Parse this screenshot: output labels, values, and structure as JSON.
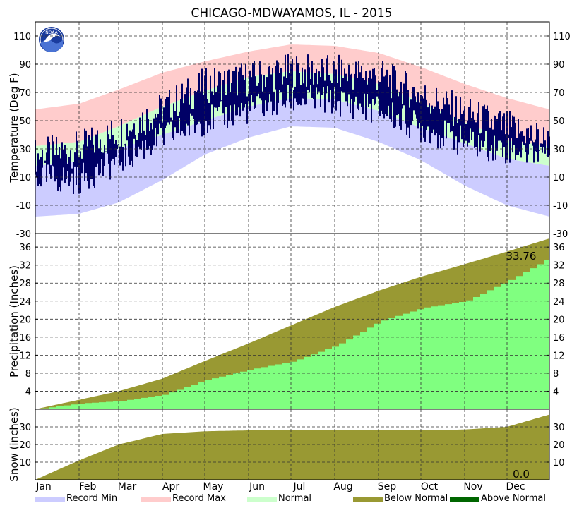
{
  "chart_data": {
    "type": "area",
    "title": "CHICAGO-MDWAYAMOS, IL - 2015",
    "months": [
      "Jan",
      "Feb",
      "Mar",
      "Apr",
      "May",
      "Jun",
      "Jul",
      "Aug",
      "Sep",
      "Oct",
      "Nov",
      "Dec"
    ],
    "colors": {
      "record_min": "#ccccff",
      "record_max": "#ffcccc",
      "normal": "#ccffcc",
      "observed": "#000066",
      "precip_normal": "#999933",
      "precip_actual": "#80ff80",
      "above_normal": "#006600",
      "grid": "#555555"
    },
    "legend": [
      {
        "label": "Record Min",
        "color": "#ccccff"
      },
      {
        "label": "Record Max",
        "color": "#ffcccc"
      },
      {
        "label": "Normal",
        "color": "#ccffcc"
      },
      {
        "label": "Below Normal",
        "color": "#999933"
      },
      {
        "label": "Above Normal",
        "color": "#006600"
      }
    ],
    "panels": [
      {
        "id": "temperature",
        "ylabel": "Temperature (Deg F)",
        "ylim": [
          -30,
          120
        ],
        "ticks": [
          -30,
          -10,
          10,
          30,
          50,
          70,
          90,
          110
        ],
        "doy": [
          1,
          32,
          60,
          91,
          121,
          152,
          182,
          213,
          244,
          274,
          305,
          335,
          365
        ],
        "record_max": [
          58,
          62,
          72,
          84,
          92,
          99,
          104,
          103,
          98,
          88,
          76,
          66,
          58
        ],
        "record_min": [
          -18,
          -16,
          -8,
          8,
          26,
          38,
          46,
          45,
          35,
          22,
          4,
          -10,
          -18
        ],
        "normal_high": [
          32,
          35,
          46,
          60,
          71,
          81,
          85,
          83,
          76,
          63,
          49,
          36,
          32
        ],
        "normal_low": [
          18,
          21,
          30,
          40,
          50,
          60,
          66,
          65,
          57,
          45,
          34,
          23,
          18
        ],
        "observed_high": [
          25,
          30,
          42,
          58,
          75,
          80,
          85,
          84,
          82,
          68,
          55,
          45,
          35
        ],
        "observed_low": [
          10,
          8,
          22,
          38,
          50,
          58,
          65,
          64,
          58,
          45,
          35,
          30,
          28
        ]
      },
      {
        "id": "precipitation",
        "ylabel": "Precipitation (Inches)",
        "ylim": [
          0,
          39
        ],
        "ticks": [
          4,
          8,
          12,
          16,
          20,
          24,
          28,
          32,
          36
        ],
        "doy": [
          1,
          32,
          60,
          91,
          121,
          152,
          182,
          213,
          244,
          274,
          305,
          335,
          365
        ],
        "normal_cumulative": [
          0,
          2.1,
          4.0,
          6.8,
          10.7,
          14.6,
          18.6,
          22.7,
          26.3,
          29.4,
          32.2,
          35.0,
          37.9
        ],
        "actual_cumulative": [
          0,
          1.3,
          1.8,
          3.2,
          6.5,
          8.8,
          10.6,
          14.1,
          19.5,
          22.5,
          24.0,
          28.5,
          33.76
        ],
        "annotation": "33.76"
      },
      {
        "id": "snow",
        "ylabel": "Snow (inches)",
        "ylim": [
          0,
          40
        ],
        "ticks": [
          10,
          20,
          30
        ],
        "doy": [
          1,
          32,
          60,
          91,
          121,
          152,
          182,
          213,
          244,
          274,
          305,
          335,
          365
        ],
        "normal_cumulative": [
          0,
          11,
          20,
          26,
          27.5,
          28,
          28,
          28,
          28,
          28,
          28.5,
          30,
          37
        ],
        "actual_cumulative": [
          0,
          0,
          0,
          0,
          0,
          0,
          0,
          0,
          0,
          0,
          0,
          0,
          0
        ],
        "annotation": "0.0"
      }
    ]
  }
}
